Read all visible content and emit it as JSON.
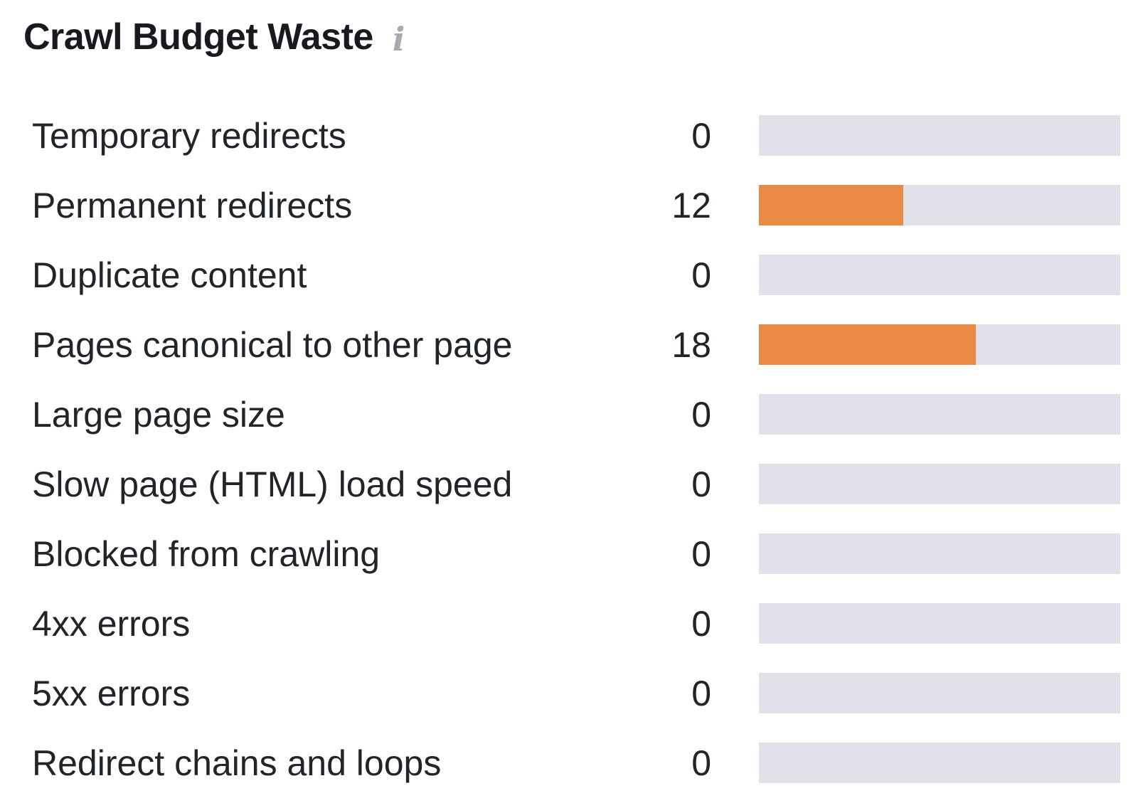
{
  "widget": {
    "title": "Crawl Budget Waste",
    "info_icon": "i",
    "accent_color": "#EB8A44",
    "track_color": "#E1E1E9",
    "background_color": "#FFFFFF"
  },
  "chart_data": {
    "type": "bar",
    "orientation": "horizontal",
    "title": "Crawl Budget Waste",
    "categories": [
      "Temporary redirects",
      "Permanent redirects",
      "Duplicate content",
      "Pages canonical to other page",
      "Large page size",
      "Slow page (HTML) load speed",
      "Blocked from crawling",
      "4xx errors",
      "5xx errors",
      "Redirect chains and loops"
    ],
    "values": [
      0,
      12,
      0,
      18,
      0,
      0,
      0,
      0,
      0,
      0
    ],
    "xlim": [
      0,
      30
    ],
    "bar_color": "#EB8A44",
    "track_color": "#E1E1E9",
    "value_labels_shown": true,
    "grid": false,
    "legend": false,
    "axis_ticks_shown": false
  }
}
